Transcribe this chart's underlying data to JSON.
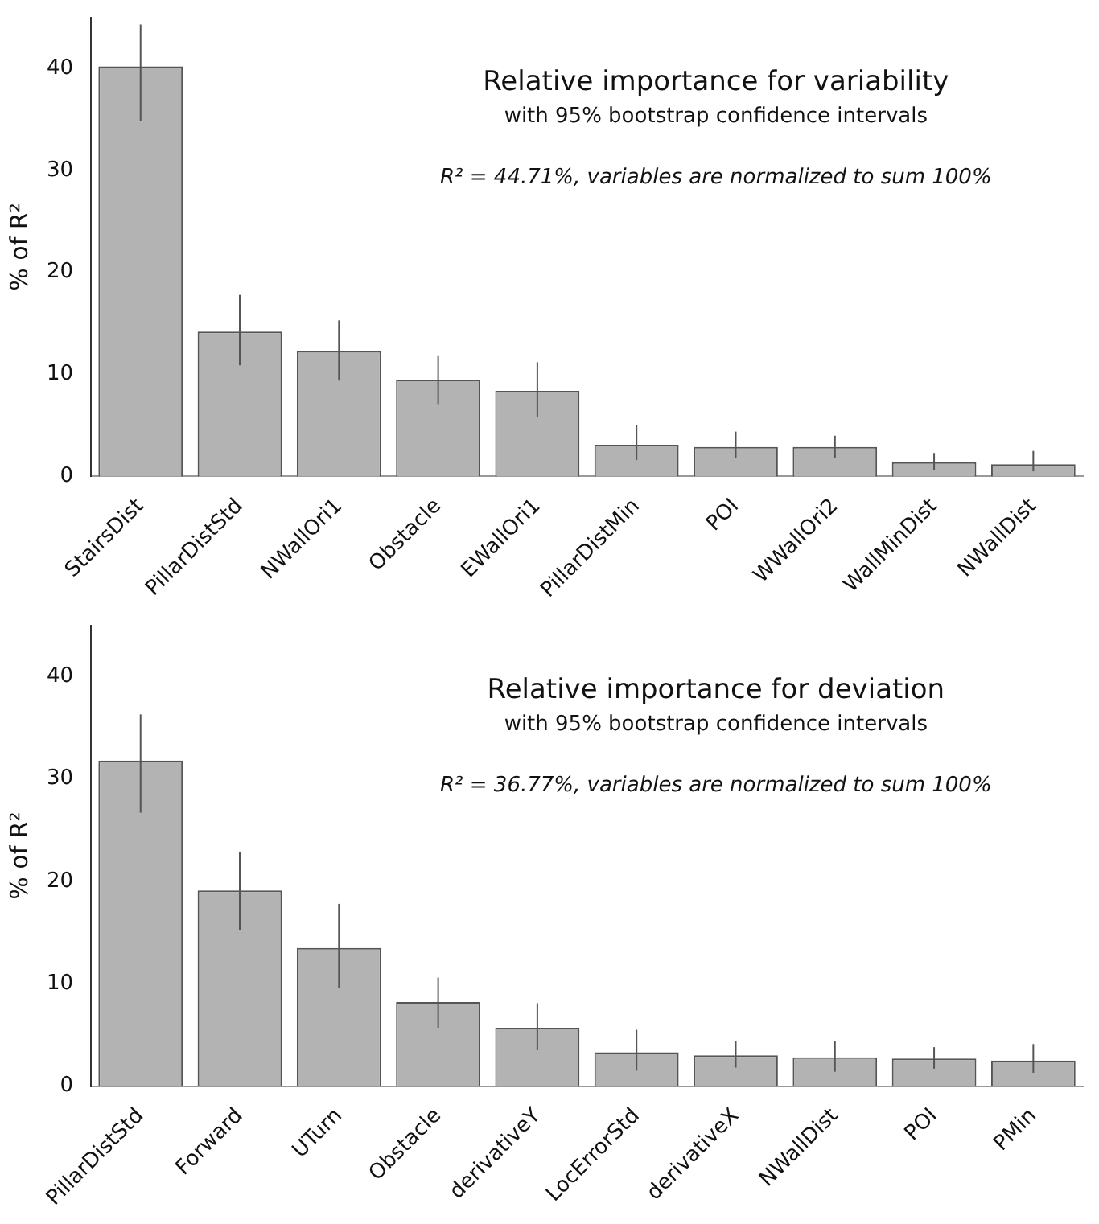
{
  "chart_data": [
    {
      "type": "bar",
      "title": "Relative importance for variability",
      "subtitle": "with 95% bootstrap confidence intervals",
      "ylabel": "% of R²",
      "annotations": [
        "R² = 44.71%, variables are normalized to sum 100%"
      ],
      "categories": [
        "StairsDist",
        "PillarDistStd",
        "NWallOri1",
        "Obstacle",
        "EWallOri1",
        "PillarDistMin",
        "POI",
        "WWallOri2",
        "WallMinDist",
        "NWallDist"
      ],
      "values": [
        40.2,
        14.2,
        12.3,
        9.5,
        8.4,
        3.1,
        2.9,
        2.9,
        1.4,
        1.2
      ],
      "errors": [
        [
          34.8,
          44.3
        ],
        [
          10.9,
          17.8
        ],
        [
          9.4,
          15.3
        ],
        [
          7.1,
          11.8
        ],
        [
          5.8,
          11.2
        ],
        [
          1.6,
          5.0
        ],
        [
          1.8,
          4.4
        ],
        [
          1.8,
          4.0
        ],
        [
          0.6,
          2.3
        ],
        [
          0.5,
          2.5
        ]
      ],
      "color": "#b3b3b3",
      "ylim": [
        0,
        45
      ],
      "yticks": [
        0,
        10,
        20,
        30,
        40
      ],
      "grid": false,
      "legend": false
    },
    {
      "type": "bar",
      "title": "Relative importance for deviation",
      "subtitle": "with 95% bootstrap confidence intervals",
      "ylabel": "% of R²",
      "annotations": [
        "R² = 36.77%, variables are normalized to sum 100%"
      ],
      "categories": [
        "PillarDistStd",
        "Forward",
        "UTurn",
        "Obstacle",
        "derivativeY",
        "LocErrorStd",
        "derivativeX",
        "NWallDist",
        "POI",
        "PMin"
      ],
      "values": [
        31.8,
        19.1,
        13.5,
        8.2,
        5.7,
        3.3,
        3.0,
        2.8,
        2.7,
        2.5
      ],
      "errors": [
        [
          26.7,
          36.3
        ],
        [
          15.2,
          22.9
        ],
        [
          9.6,
          17.8
        ],
        [
          5.7,
          10.6
        ],
        [
          3.5,
          8.1
        ],
        [
          1.5,
          5.5
        ],
        [
          1.8,
          4.4
        ],
        [
          1.4,
          4.4
        ],
        [
          1.7,
          3.8
        ],
        [
          1.3,
          4.1
        ]
      ],
      "color": "#b3b3b3",
      "ylim": [
        0,
        45
      ],
      "yticks": [
        0,
        10,
        20,
        30,
        40
      ],
      "grid": false,
      "legend": false
    }
  ]
}
